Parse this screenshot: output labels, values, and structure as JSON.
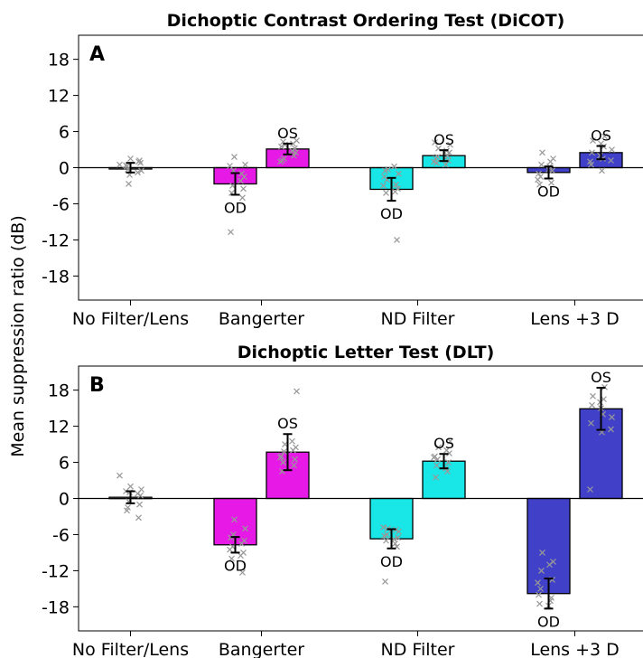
{
  "figure": {
    "ylabel": "Mean suppression ratio (dB)"
  },
  "chart_data": [
    {
      "type": "bar",
      "panel": "A",
      "title": "Dichoptic Contrast Ordering Test (DiCOT)",
      "ylabel": "Mean suppression ratio (dB)",
      "ylim": [
        -22,
        22
      ],
      "yticks": [
        18,
        12,
        6,
        0,
        -6,
        -12,
        -18
      ],
      "ytick_labels": [
        "18",
        "12",
        "6",
        "0",
        "-6",
        "-12",
        "-18"
      ],
      "categories": [
        "No Filter/Lens",
        "Bangerter",
        "ND Filter",
        "Lens +3 D"
      ],
      "colors": {
        "none": "#ffffff",
        "Bangerter": "#e619e6",
        "ND Filter": "#19e6e6",
        "Lens +3 D": "#4040c8"
      },
      "bars": [
        {
          "category": "No Filter/Lens",
          "eye": "",
          "value": 0.0,
          "err": 0.8,
          "color": "#ffffff",
          "points": [
            0.5,
            1.5,
            -0.5,
            -1.2,
            0.8,
            -2.7,
            1.2,
            -0.3,
            1.0,
            0.2,
            -0.8,
            0.4
          ]
        },
        {
          "category": "Bangerter",
          "eye": "OD",
          "value": -2.7,
          "err": 1.8,
          "color": "#e619e6",
          "points": [
            1.8,
            0.5,
            -0.5,
            -1.5,
            -3.0,
            -3.5,
            -4.2,
            -5.0,
            -10.7,
            -1.0,
            0.3,
            -2.2
          ]
        },
        {
          "category": "Bangerter",
          "eye": "OS",
          "value": 3.1,
          "err": 0.9,
          "color": "#e619e6",
          "points": [
            4.5,
            3.8,
            2.5,
            1.5,
            3.2,
            4.3,
            2.0,
            1.2,
            4.0,
            3.5,
            2.8,
            1.0
          ]
        },
        {
          "category": "ND Filter",
          "eye": "OD",
          "value": -3.6,
          "err": 1.9,
          "color": "#19e6e6",
          "points": [
            -0.3,
            -1.0,
            -2.0,
            -3.5,
            -4.2,
            -12.0,
            -0.5,
            -2.8,
            -1.5,
            -4.0,
            -3.0,
            0.2
          ]
        },
        {
          "category": "ND Filter",
          "eye": "OS",
          "value": 2.0,
          "err": 0.9,
          "color": "#19e6e6",
          "points": [
            3.8,
            3.2,
            2.5,
            1.8,
            1.2,
            0.8,
            2.0,
            1.5,
            2.8,
            4.2,
            0.5,
            1.0
          ]
        },
        {
          "category": "Lens +3 D",
          "eye": "OD",
          "value": -0.8,
          "err": 1.0,
          "color": "#4040c8",
          "points": [
            2.5,
            1.5,
            0.5,
            -0.5,
            -1.5,
            -2.5,
            -2.8,
            1.0,
            -1.0,
            0.2,
            -2.0,
            -0.3
          ]
        },
        {
          "category": "Lens +3 D",
          "eye": "OS",
          "value": 2.5,
          "err": 1.1,
          "color": "#4040c8",
          "points": [
            5.2,
            4.5,
            3.5,
            2.5,
            1.5,
            0.5,
            -0.5,
            1.0,
            4.0,
            3.0,
            2.0,
            1.2
          ]
        }
      ]
    },
    {
      "type": "bar",
      "panel": "B",
      "title": "Dichoptic Letter Test (DLT)",
      "ylabel": "Mean suppression ratio (dB)",
      "ylim": [
        -22,
        22
      ],
      "yticks": [
        18,
        12,
        6,
        0,
        -6,
        -12,
        -18
      ],
      "ytick_labels": [
        "18",
        "12",
        "6",
        "0",
        "-6",
        "-12",
        "-18"
      ],
      "categories": [
        "No Filter/Lens",
        "Bangerter",
        "ND Filter",
        "Lens +3 D"
      ],
      "colors": {
        "none": "#ffffff",
        "Bangerter": "#e619e6",
        "ND Filter": "#19e6e6",
        "Lens +3 D": "#4040c8"
      },
      "bars": [
        {
          "category": "No Filter/Lens",
          "eye": "",
          "value": 0.2,
          "err": 1.0,
          "color": "#ffffff",
          "points": [
            3.8,
            2.0,
            1.5,
            1.0,
            0.5,
            -0.5,
            -1.0,
            -1.5,
            -3.2,
            -2.0,
            0.8,
            1.2
          ]
        },
        {
          "category": "Bangerter",
          "eye": "OD",
          "value": -7.7,
          "err": 1.3,
          "color": "#e619e6",
          "points": [
            -3.5,
            -5.0,
            -6.0,
            -7.0,
            -8.0,
            -9.0,
            -10.0,
            -12.3,
            -6.5,
            -7.5,
            -8.5,
            -9.5
          ]
        },
        {
          "category": "Bangerter",
          "eye": "OS",
          "value": 7.7,
          "err": 3.0,
          "color": "#e619e6",
          "points": [
            17.8,
            9.0,
            8.5,
            7.8,
            6.5,
            6.0,
            5.5,
            4.5,
            8.0,
            7.0,
            9.5,
            6.8
          ]
        },
        {
          "category": "ND Filter",
          "eye": "OD",
          "value": -6.7,
          "err": 1.6,
          "color": "#19e6e6",
          "points": [
            -5.0,
            -5.5,
            -6.0,
            -6.5,
            -7.0,
            -8.0,
            -13.8,
            -5.2,
            -6.2,
            -7.5,
            -4.8,
            -6.8
          ]
        },
        {
          "category": "ND Filter",
          "eye": "OS",
          "value": 6.2,
          "err": 1.2,
          "color": "#19e6e6",
          "points": [
            9.5,
            8.5,
            7.5,
            6.5,
            6.0,
            5.5,
            4.5,
            3.5,
            8.0,
            7.0,
            5.0,
            6.8
          ]
        },
        {
          "category": "Lens +3 D",
          "eye": "OD",
          "value": -15.8,
          "err": 2.5,
          "color": "#4040c8",
          "points": [
            -9.0,
            -10.5,
            -12.0,
            -13.5,
            -15.0,
            -16.5,
            -17.5,
            -17.0,
            -16.0,
            -11.0,
            -14.0,
            -17.8
          ]
        },
        {
          "category": "Lens +3 D",
          "eye": "OS",
          "value": 14.9,
          "err": 3.5,
          "color": "#4040c8",
          "points": [
            18.5,
            17.0,
            16.5,
            15.5,
            14.0,
            12.5,
            11.0,
            1.5,
            15.0,
            13.5,
            16.0,
            11.5
          ]
        }
      ]
    }
  ]
}
